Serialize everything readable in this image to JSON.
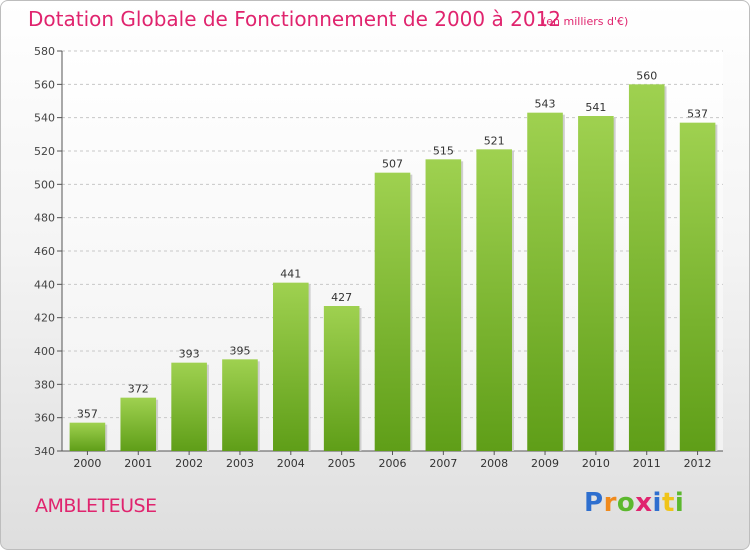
{
  "header": {
    "title": "Dotation Globale de Fonctionnement de 2000 à 2012",
    "subtitle": "(en milliers d'€)"
  },
  "footer": {
    "commune": "AMBLETEUSE",
    "logo_text": "Proxiti"
  },
  "colors": {
    "accent": "#e0246e",
    "bar_top": "#9fd150",
    "bar_bottom": "#5f9e18"
  },
  "chart_data": {
    "type": "bar",
    "title": "Dotation Globale de Fonctionnement de 2000 à 2012",
    "subtitle": "(en milliers d'€)",
    "xlabel": "",
    "ylabel": "",
    "categories": [
      "2000",
      "2001",
      "2002",
      "2003",
      "2004",
      "2005",
      "2006",
      "2007",
      "2008",
      "2009",
      "2010",
      "2011",
      "2012"
    ],
    "values": [
      357,
      372,
      393,
      395,
      441,
      427,
      507,
      515,
      521,
      543,
      541,
      560,
      537
    ],
    "ylim": [
      340,
      580
    ],
    "yticks": [
      340,
      360,
      380,
      400,
      420,
      440,
      460,
      480,
      500,
      520,
      540,
      560,
      580
    ],
    "grid": true,
    "legend": "none"
  }
}
